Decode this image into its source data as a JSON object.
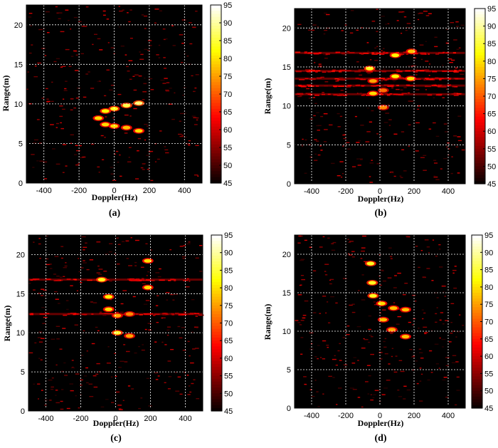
{
  "colorbar": {
    "min": 45,
    "max": 95,
    "ticks": [
      "95",
      "90",
      "85",
      "80",
      "75",
      "70",
      "65",
      "60",
      "55",
      "50",
      "45"
    ],
    "colormap": "hot"
  },
  "chart_data": [
    {
      "type": "heatmap",
      "subtitle": "(a)",
      "xlabel": "Doppler(Hz)",
      "ylabel": "Range(m)",
      "xlim": [
        -500,
        500
      ],
      "ylim": [
        0,
        22.5
      ],
      "xticks": [
        "-400",
        "-200",
        "0",
        "200",
        "400"
      ],
      "yticks": [
        "0",
        "5",
        "10",
        "15",
        "20"
      ],
      "grid": true,
      "noise_bands": [],
      "targets": [
        {
          "doppler": -90,
          "range": 8.2,
          "level": 80
        },
        {
          "doppler": -50,
          "range": 9.1,
          "level": 82
        },
        {
          "doppler": 0,
          "range": 9.4,
          "level": 84
        },
        {
          "doppler": 70,
          "range": 9.8,
          "level": 86
        },
        {
          "doppler": 140,
          "range": 10.1,
          "level": 88
        },
        {
          "doppler": -50,
          "range": 7.4,
          "level": 80
        },
        {
          "doppler": 0,
          "range": 7.2,
          "level": 80
        },
        {
          "doppler": 70,
          "range": 7.0,
          "level": 78
        },
        {
          "doppler": 140,
          "range": 6.6,
          "level": 80
        }
      ]
    },
    {
      "type": "heatmap",
      "subtitle": "(b)",
      "xlabel": "Doppler(Hz)",
      "ylabel": "Range(m)",
      "xlim": [
        -500,
        500
      ],
      "ylim": [
        0,
        22.5
      ],
      "xticks": [
        "-400",
        "-200",
        "0",
        "200",
        "400"
      ],
      "yticks": [
        "0",
        "5",
        "10",
        "15",
        "20"
      ],
      "grid": true,
      "noise_bands": [
        16.8,
        14.5,
        13.5,
        12.6,
        11.5
      ],
      "targets": [
        {
          "doppler": 185,
          "range": 17.0,
          "level": 78
        },
        {
          "doppler": 90,
          "range": 16.5,
          "level": 82
        },
        {
          "doppler": -60,
          "range": 14.8,
          "level": 84
        },
        {
          "doppler": 90,
          "range": 13.8,
          "level": 82
        },
        {
          "doppler": 180,
          "range": 13.5,
          "level": 80
        },
        {
          "doppler": -40,
          "range": 13.2,
          "level": 76
        },
        {
          "doppler": -40,
          "range": 11.6,
          "level": 80
        },
        {
          "doppler": 20,
          "range": 12.0,
          "level": 72
        },
        {
          "doppler": 20,
          "range": 9.8,
          "level": 74
        }
      ]
    },
    {
      "type": "heatmap",
      "subtitle": "(c)",
      "xlabel": "Doppler(Hz)",
      "ylabel": "Range(m)",
      "xlim": [
        -500,
        500
      ],
      "ylim": [
        0,
        22.5
      ],
      "xticks": [
        "-400",
        "-200",
        "0",
        "200",
        "400"
      ],
      "yticks": [
        "0",
        "5",
        "10",
        "15",
        "20"
      ],
      "grid": true,
      "noise_bands": [
        16.8,
        12.4
      ],
      "targets": [
        {
          "doppler": 185,
          "range": 19.2,
          "level": 80
        },
        {
          "doppler": -80,
          "range": 16.8,
          "level": 84
        },
        {
          "doppler": 185,
          "range": 15.8,
          "level": 80
        },
        {
          "doppler": -40,
          "range": 14.6,
          "level": 82
        },
        {
          "doppler": -40,
          "range": 13.0,
          "level": 80
        },
        {
          "doppler": 10,
          "range": 12.2,
          "level": 76
        },
        {
          "doppler": 80,
          "range": 12.4,
          "level": 74
        },
        {
          "doppler": 10,
          "range": 10.0,
          "level": 84
        },
        {
          "doppler": 80,
          "range": 9.6,
          "level": 76
        }
      ]
    },
    {
      "type": "heatmap",
      "subtitle": "(d)",
      "xlabel": "Doppler(Hz)",
      "ylabel": "Range(m)",
      "xlim": [
        -500,
        500
      ],
      "ylim": [
        0,
        22.5
      ],
      "xticks": [
        "-400",
        "-200",
        "0",
        "200",
        "400"
      ],
      "yticks": [
        "0",
        "5",
        "10",
        "15",
        "20"
      ],
      "grid": true,
      "noise_bands": [],
      "targets": [
        {
          "doppler": -55,
          "range": 18.8,
          "level": 84
        },
        {
          "doppler": -45,
          "range": 16.3,
          "level": 84
        },
        {
          "doppler": -40,
          "range": 14.6,
          "level": 84
        },
        {
          "doppler": 10,
          "range": 13.6,
          "level": 80
        },
        {
          "doppler": 80,
          "range": 13.0,
          "level": 78
        },
        {
          "doppler": 150,
          "range": 12.8,
          "level": 78
        },
        {
          "doppler": 20,
          "range": 11.5,
          "level": 78
        },
        {
          "doppler": 70,
          "range": 10.2,
          "level": 76
        },
        {
          "doppler": 150,
          "range": 9.3,
          "level": 78
        }
      ]
    }
  ]
}
